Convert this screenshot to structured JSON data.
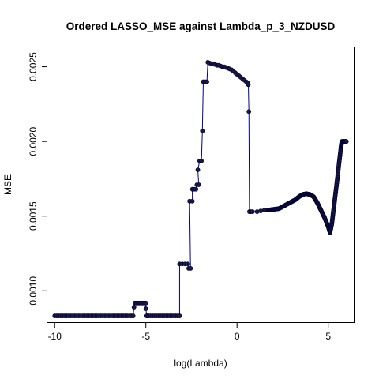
{
  "chart_data": {
    "type": "line",
    "title": "Ordered LASSO_MSE against Lambda_p_3_NZDUSD",
    "xlabel": "log(Lambda)",
    "ylabel": "MSE",
    "xlim": [
      -10.4,
      6.4
    ],
    "ylim": [
      0.00079,
      0.00263
    ],
    "x_ticks": [
      -10,
      -5,
      0,
      5
    ],
    "x_tick_labels": [
      "-10",
      "-5",
      "0",
      "5"
    ],
    "y_ticks": [
      0.001,
      0.0015,
      0.002,
      0.0025
    ],
    "y_tick_labels": [
      "0.0010",
      "0.0015",
      "0.0020",
      "0.0025"
    ],
    "grid": false,
    "legend": "none",
    "line_color": "#00008B",
    "point_color": "#1a1a40",
    "series": [
      {
        "segments": [
          {
            "kind": "flat",
            "x0": -10.0,
            "x1": -5.7,
            "y": 0.000832,
            "n": 40
          },
          {
            "kind": "points",
            "pts": [
              [
                -5.7,
                0.000832
              ],
              [
                -5.65,
                0.00089
              ],
              [
                -5.6,
                0.000918
              ]
            ]
          },
          {
            "kind": "flat",
            "x0": -5.6,
            "x1": -5.0,
            "y": 0.000918,
            "n": 8
          },
          {
            "kind": "points",
            "pts": [
              [
                -5.0,
                0.00088
              ],
              [
                -4.95,
                0.000832
              ]
            ]
          },
          {
            "kind": "flat",
            "x0": -4.95,
            "x1": -3.15,
            "y": 0.000832,
            "n": 18
          },
          {
            "kind": "points",
            "pts": [
              [
                -3.15,
                0.00118
              ],
              [
                -3.0,
                0.00118
              ],
              [
                -2.85,
                0.00118
              ],
              [
                -2.7,
                0.00118
              ],
              [
                -2.65,
                0.00115
              ],
              [
                -2.55,
                0.00115
              ],
              [
                -2.6,
                0.0016
              ],
              [
                -2.45,
                0.0016
              ],
              [
                -2.45,
                0.00168
              ],
              [
                -2.35,
                0.00168
              ],
              [
                -2.25,
                0.00168
              ],
              [
                -2.2,
                0.00171
              ],
              [
                -2.1,
                0.00171
              ],
              [
                -2.15,
                0.00181
              ],
              [
                -2.05,
                0.00187
              ],
              [
                -1.95,
                0.00187
              ],
              [
                -1.9,
                0.00207
              ],
              [
                -1.85,
                0.0024
              ],
              [
                -1.75,
                0.0024
              ],
              [
                -1.65,
                0.0024
              ],
              [
                -1.6,
                0.00253
              ],
              [
                -1.5,
                0.002525
              ],
              [
                -1.4,
                0.00252
              ],
              [
                -1.3,
                0.00252
              ],
              [
                -1.2,
                0.002515
              ],
              [
                -1.1,
                0.00251
              ],
              [
                -1.0,
                0.00251
              ],
              [
                -0.9,
                0.002505
              ],
              [
                -0.8,
                0.0025
              ],
              [
                -0.7,
                0.0025
              ],
              [
                -0.6,
                0.002495
              ],
              [
                -0.5,
                0.00249
              ],
              [
                -0.4,
                0.002485
              ],
              [
                -0.3,
                0.00248
              ],
              [
                -0.2,
                0.00247
              ],
              [
                -0.1,
                0.00246
              ],
              [
                0.0,
                0.00245
              ],
              [
                0.1,
                0.00244
              ],
              [
                0.2,
                0.00243
              ],
              [
                0.3,
                0.00242
              ],
              [
                0.4,
                0.00241
              ],
              [
                0.5,
                0.0024
              ],
              [
                0.6,
                0.00239
              ],
              [
                0.62,
                0.00238
              ],
              [
                0.65,
                0.0022
              ],
              [
                0.68,
                0.00153
              ],
              [
                0.75,
                0.00153
              ],
              [
                0.85,
                0.00153
              ],
              [
                1.1,
                0.00153
              ],
              [
                1.3,
                0.001535
              ],
              [
                1.5,
                0.00154
              ],
              [
                1.7,
                0.00154
              ]
            ]
          },
          {
            "kind": "curve",
            "pts": [
              [
                1.7,
                0.00154
              ],
              [
                2.0,
                0.001545
              ],
              [
                2.3,
                0.00155
              ],
              [
                2.6,
                0.00157
              ],
              [
                2.9,
                0.00159
              ],
              [
                3.2,
                0.00161
              ],
              [
                3.4,
                0.00163
              ],
              [
                3.6,
                0.001645
              ],
              [
                3.8,
                0.00165
              ],
              [
                4.0,
                0.001645
              ],
              [
                4.2,
                0.00163
              ],
              [
                4.4,
                0.00159
              ],
              [
                4.6,
                0.00154
              ],
              [
                4.8,
                0.00149
              ],
              [
                5.0,
                0.00143
              ],
              [
                5.1,
                0.00139
              ],
              [
                5.2,
                0.00145
              ],
              [
                5.3,
                0.00155
              ],
              [
                5.4,
                0.00165
              ],
              [
                5.5,
                0.00175
              ],
              [
                5.6,
                0.00186
              ],
              [
                5.7,
                0.00196
              ],
              [
                5.75,
                0.002
              ],
              [
                5.85,
                0.002
              ],
              [
                6.0,
                0.002
              ]
            ],
            "density": 10
          }
        ]
      }
    ]
  }
}
